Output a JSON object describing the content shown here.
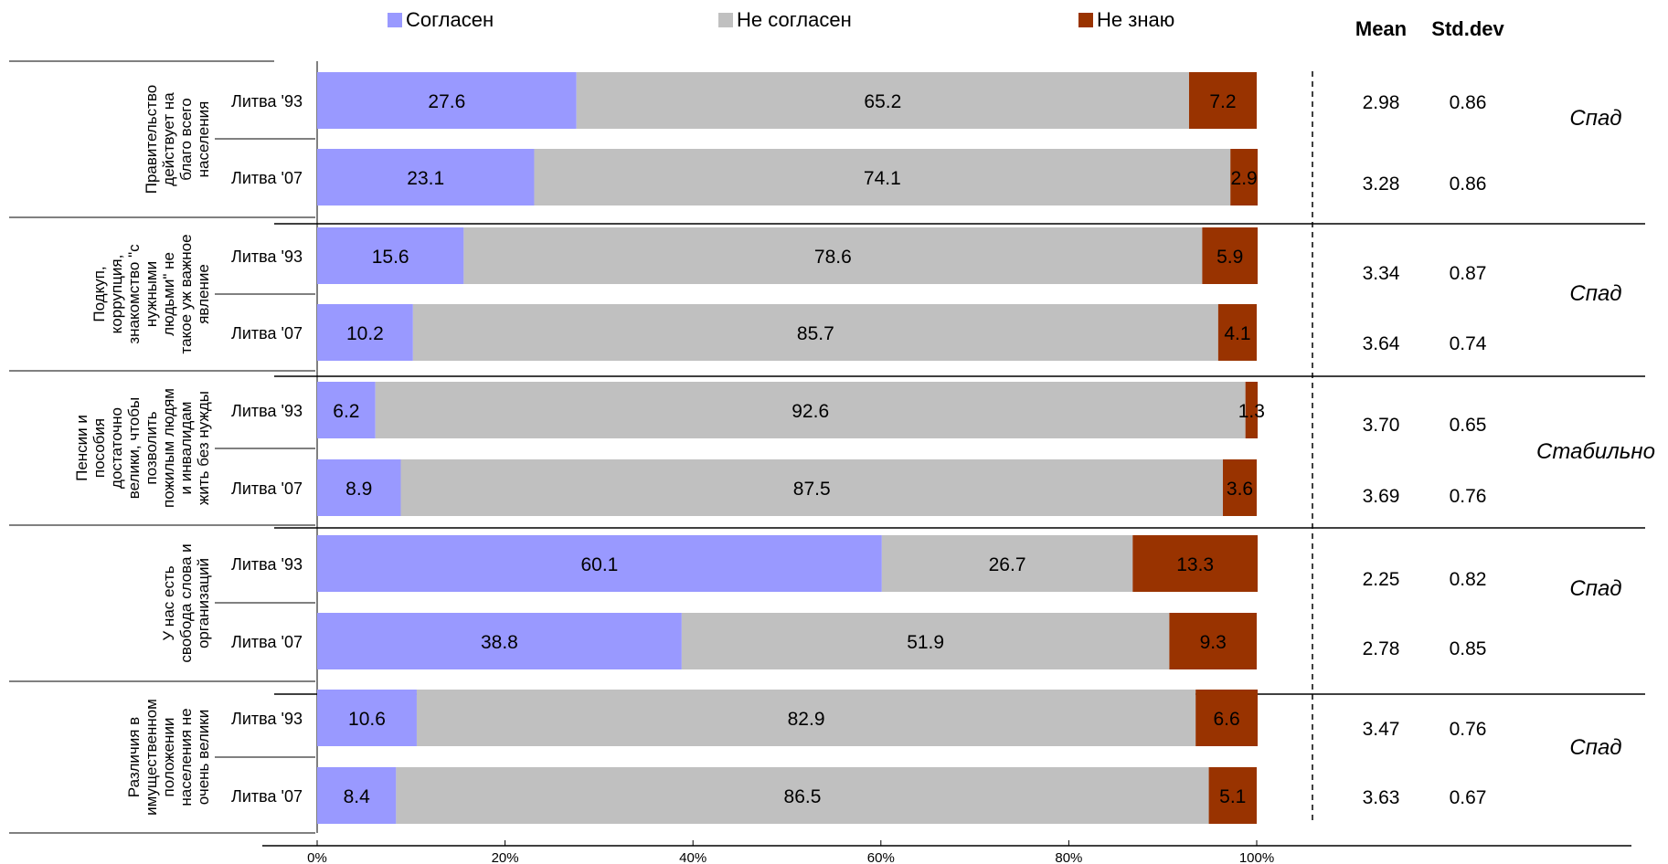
{
  "chart_data": {
    "type": "bar",
    "stacked": true,
    "orientation": "horizontal",
    "percent_scale": true,
    "xlim": [
      0,
      100
    ],
    "x_ticks": [
      "0%",
      "20%",
      "40%",
      "60%",
      "80%",
      "100%"
    ],
    "legend": [
      {
        "name": "Согласен",
        "color": "#9999ff"
      },
      {
        "name": "Не согласен",
        "color": "#c0c0c0"
      },
      {
        "name": "Не знаю",
        "color": "#993300"
      }
    ],
    "stats_headers": {
      "mean": "Mean",
      "std": "Std.dev"
    },
    "groups": [
      {
        "label": "Правительство действует на благо всего населения",
        "label_lines": [
          "Правительство",
          "действует на",
          "благо всего",
          "населения"
        ],
        "trend": "Спад",
        "rows": [
          {
            "label": "Литва '93",
            "values": [
              27.6,
              65.2,
              7.2
            ],
            "labels": [
              "27.6",
              "65.2",
              "7.2"
            ],
            "mean": "2.98",
            "std": "0.86"
          },
          {
            "label": "Литва '07",
            "values": [
              23.1,
              74.1,
              2.9
            ],
            "labels": [
              "23.1",
              "74.1",
              "2.9"
            ],
            "mean": "3.28",
            "std": "0.86"
          }
        ]
      },
      {
        "label": "Подкуп, коррупция, знакомство \"с нужными людьми\" не такое уж важное явление",
        "label_lines": [
          "Подкуп,",
          "коррупция,",
          "знакомство \"с",
          "нужными",
          "людьми\" не",
          "такое уж важное",
          "явление"
        ],
        "trend": "Спад",
        "rows": [
          {
            "label": "Литва '93",
            "values": [
              15.6,
              78.6,
              5.9
            ],
            "labels": [
              "15.6",
              "78.6",
              "5.9"
            ],
            "mean": "3.34",
            "std": "0.87"
          },
          {
            "label": "Литва '07",
            "values": [
              10.2,
              85.7,
              4.1
            ],
            "labels": [
              "10.2",
              "85.7",
              "4.1"
            ],
            "mean": "3.64",
            "std": "0.74"
          }
        ]
      },
      {
        "label": "Пенсии и пособия достаточно велики, чтобы позволить пожилым людям и инвалидам жить без нужды",
        "label_lines": [
          "Пенсии и",
          "пособия",
          "достаточно",
          "велики, чтобы",
          "позволить",
          "пожилым людям",
          "и инвалидам",
          "жить без нужды"
        ],
        "trend": "Стабильно",
        "rows": [
          {
            "label": "Литва '93",
            "values": [
              6.2,
              92.6,
              1.3
            ],
            "labels": [
              "6.2",
              "92.6",
              "1.3"
            ],
            "mean": "3.70",
            "std": "0.65"
          },
          {
            "label": "Литва '07",
            "values": [
              8.9,
              87.5,
              3.6
            ],
            "labels": [
              "8.9",
              "87.5",
              "3.6"
            ],
            "mean": "3.69",
            "std": "0.76"
          }
        ]
      },
      {
        "label": "У нас есть свобода слова и организаций",
        "label_lines": [
          "У нас есть",
          "свобода слова и",
          "организаций"
        ],
        "trend": "Спад",
        "rows": [
          {
            "label": "Литва '93",
            "values": [
              60.1,
              26.7,
              13.3
            ],
            "labels": [
              "60.1",
              "26.7",
              "13.3"
            ],
            "mean": "2.25",
            "std": "0.82"
          },
          {
            "label": "Литва '07",
            "values": [
              38.8,
              51.9,
              9.3
            ],
            "labels": [
              "38.8",
              "51.9",
              "9.3"
            ],
            "mean": "2.78",
            "std": "0.85"
          }
        ]
      },
      {
        "label": "Различия в имущественном положении населения не очень велики",
        "label_lines": [
          "Различия в",
          "имущественном",
          "положении",
          "населения не",
          "очень велики"
        ],
        "trend": "Спад",
        "rows": [
          {
            "label": "Литва '93",
            "values": [
              10.6,
              82.9,
              6.6
            ],
            "labels": [
              "10.6",
              "82.9",
              "6.6"
            ],
            "mean": "3.47",
            "std": "0.76"
          },
          {
            "label": "Литва '07",
            "values": [
              8.4,
              86.5,
              5.1
            ],
            "labels": [
              "8.4",
              "86.5",
              "5.1"
            ],
            "mean": "3.63",
            "std": "0.67"
          }
        ]
      }
    ]
  }
}
